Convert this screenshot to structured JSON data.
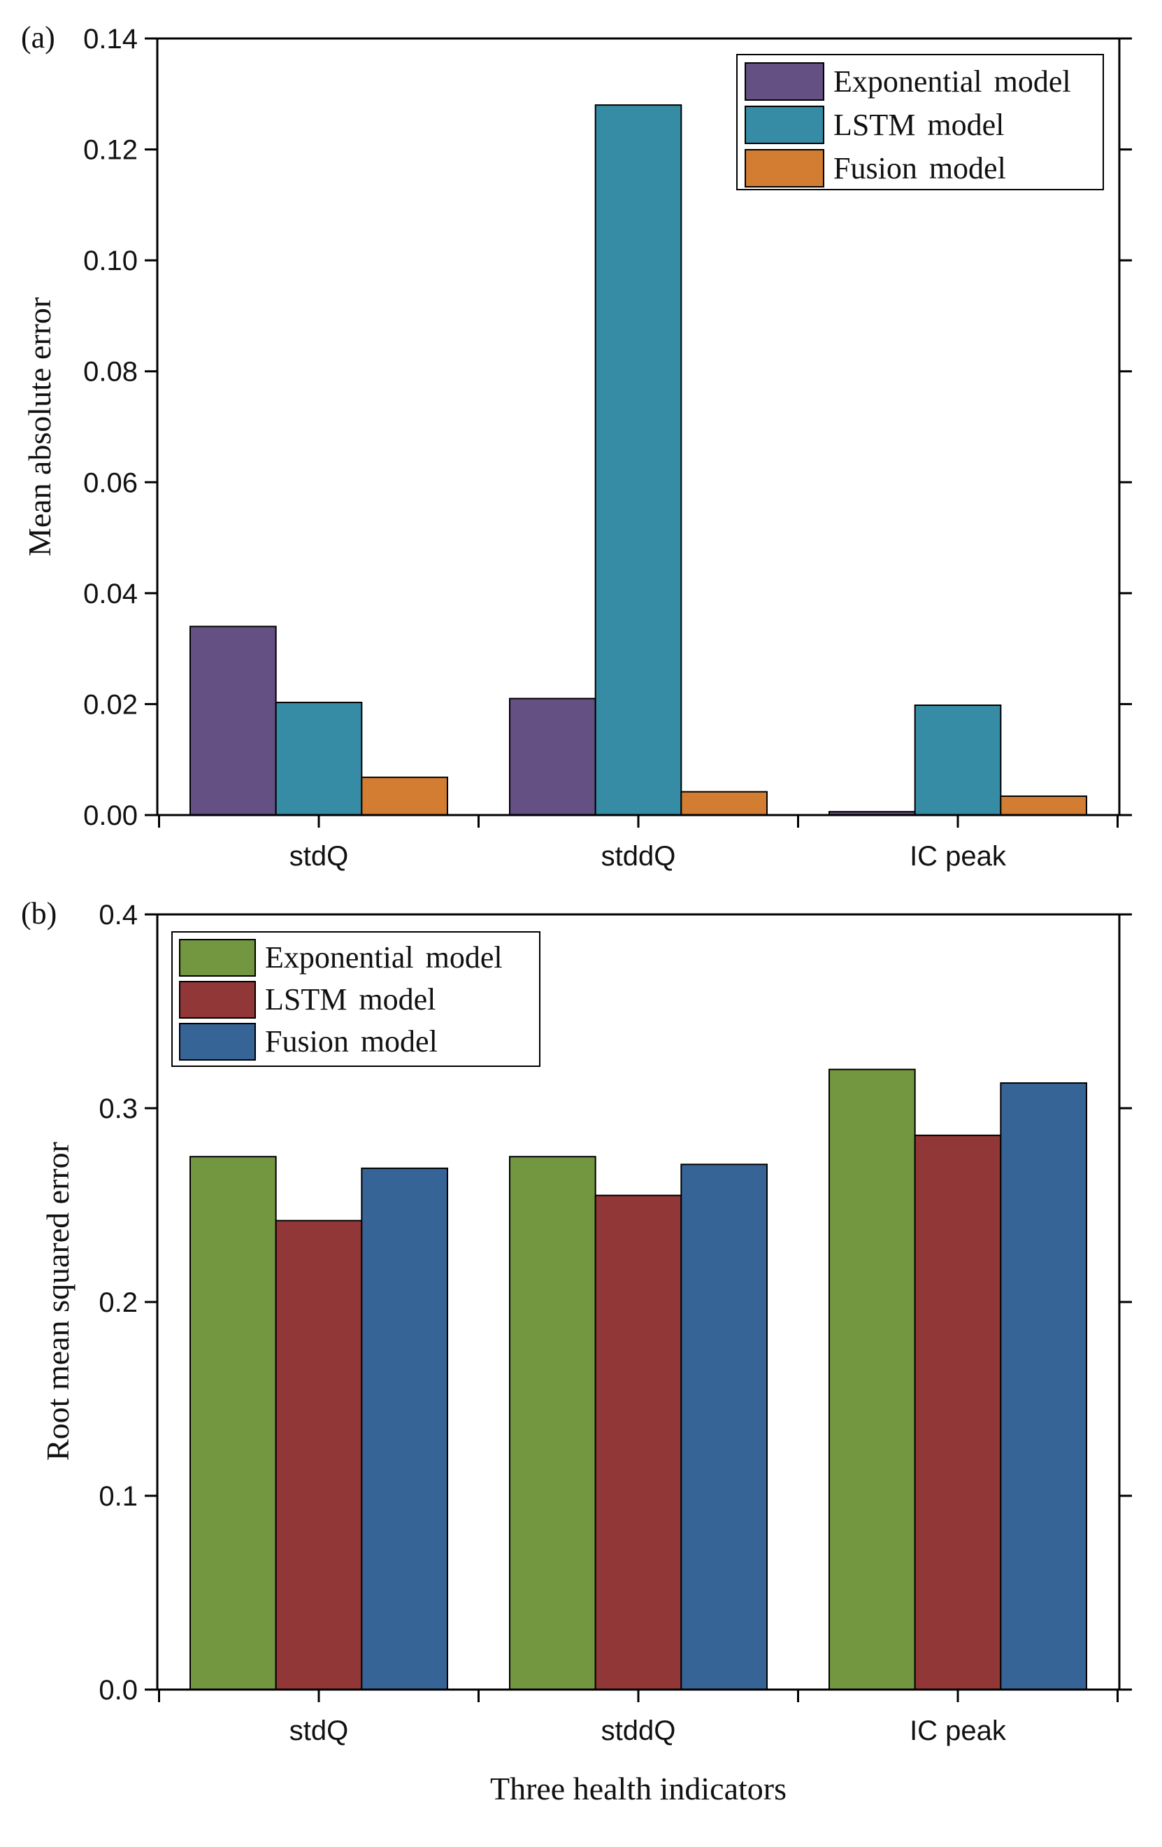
{
  "chart_data": [
    {
      "type": "bar",
      "panel_label": "(a)",
      "title": "",
      "xlabel": "",
      "ylabel": "Mean absolute error",
      "categories": [
        "stdQ",
        "stddQ",
        "IC peak"
      ],
      "ylim": [
        0,
        0.14
      ],
      "yticks": [
        0.0,
        0.02,
        0.04,
        0.06,
        0.08,
        0.1,
        0.12,
        0.14
      ],
      "ytick_labels": [
        "0.00",
        "0.02",
        "0.04",
        "0.06",
        "0.08",
        "0.10",
        "0.12",
        "0.14"
      ],
      "legend_position": "top-right",
      "grid": false,
      "series": [
        {
          "name": "Exponential model",
          "color": "#645082",
          "values": [
            0.034,
            0.021,
            0.0006
          ]
        },
        {
          "name": "LSTM model",
          "color": "#378ca5",
          "values": [
            0.0203,
            0.128,
            0.0198
          ]
        },
        {
          "name": "Fusion model",
          "color": "#d27d32",
          "values": [
            0.0068,
            0.0042,
            0.0034
          ]
        }
      ]
    },
    {
      "type": "bar",
      "panel_label": "(b)",
      "title": "",
      "xlabel": "Three health indicators",
      "ylabel": "Root mean squared error",
      "categories": [
        "stdQ",
        "stddQ",
        "IC peak"
      ],
      "ylim": [
        0,
        0.4
      ],
      "yticks": [
        0.0,
        0.1,
        0.2,
        0.3,
        0.4
      ],
      "ytick_labels": [
        "0.0",
        "0.1",
        "0.2",
        "0.3",
        "0.4"
      ],
      "legend_position": "top-left",
      "grid": false,
      "series": [
        {
          "name": "Exponential model",
          "color": "#739641",
          "values": [
            0.275,
            0.275,
            0.32
          ]
        },
        {
          "name": "LSTM model",
          "color": "#913737",
          "values": [
            0.242,
            0.255,
            0.286
          ]
        },
        {
          "name": "Fusion model",
          "color": "#376496",
          "values": [
            0.269,
            0.271,
            0.313
          ]
        }
      ]
    }
  ]
}
